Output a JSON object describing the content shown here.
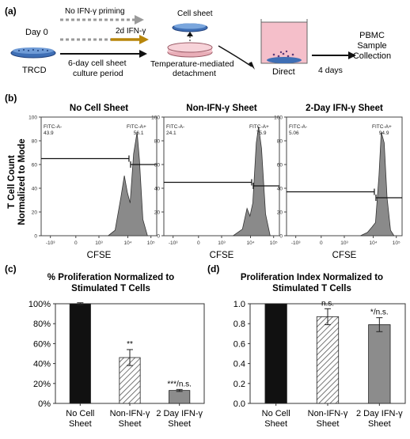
{
  "panel_a": {
    "label": "(a)",
    "day0": "Day 0",
    "trcd": "TRCD",
    "no_priming": "No IFN-γ priming",
    "two_day": "2d IFN-γ",
    "culture_line1": "6-day cell sheet",
    "culture_line2": "culture period",
    "cell_sheet": "Cell sheet",
    "detach_line1": "Temperature-mediated",
    "detach_line2": "detachment",
    "direct": "Direct",
    "four_days": "4 days",
    "pbmc_line1": "PBMC",
    "pbmc_line2": "Sample",
    "pbmc_line3": "Collection",
    "colors": {
      "gray_arrow": "#9a9a9a",
      "gold_arrow": "#b8860b",
      "dish": "#3f6fb5",
      "well": "#f2a9b8"
    }
  },
  "panel_b": {
    "label": "(b)",
    "ylabel_line1": "T Cell Count",
    "ylabel_line2": "Normalized to Mode",
    "xlabel": "CFSE",
    "yticks": [
      "100",
      "80",
      "60",
      "40",
      "20",
      "0"
    ],
    "xticks": [
      "-10³",
      "0",
      "10³",
      "10⁴",
      "10⁵"
    ],
    "plots": [
      {
        "title": "No Cell Sheet",
        "neg_label": "FITC-A-",
        "neg_value": "43.9",
        "pos_label": "FITC-A+",
        "pos_value": "56.1",
        "gate_neg_level": 65,
        "gate_pos_level": 60
      },
      {
        "title": "Non-IFN-γ Sheet",
        "neg_label": "FITC-A-",
        "neg_value": "24.1",
        "pos_label": "FITC-A+",
        "pos_value": "75.9",
        "gate_neg_level": 45,
        "gate_pos_level": 42
      },
      {
        "title": "2-Day IFN-γ Sheet",
        "neg_label": "FITC-A-",
        "neg_value": "5.06",
        "pos_label": "FITC-A+",
        "pos_value": "94.9",
        "gate_neg_level": 37,
        "gate_pos_level": 32
      }
    ]
  },
  "chart_data": [
    {
      "type": "bar",
      "label": "(c)",
      "title_line1": "% Proliferation Normalized to",
      "title_line2": "Stimulated T Cells",
      "categories_line1": [
        "No Cell",
        "Non-IFN-γ",
        "2 Day IFN-γ"
      ],
      "categories_line2": [
        "Sheet",
        "Sheet",
        "Sheet"
      ],
      "values": [
        100,
        46,
        13
      ],
      "errors": [
        1,
        8,
        1
      ],
      "annotations": [
        "",
        "**",
        "***/n.s."
      ],
      "yticks": [
        "0%",
        "20%",
        "40%",
        "60%",
        "80%",
        "100%"
      ],
      "ylim": [
        0,
        100
      ],
      "bar_styles": [
        "solid-black",
        "hatched",
        "solid-gray"
      ]
    },
    {
      "type": "bar",
      "label": "(d)",
      "title_line1": "Proliferation Index Normalized to",
      "title_line2": "Stimulated T Cells",
      "categories_line1": [
        "No Cell",
        "Non-IFN-γ",
        "2 Day IFN-γ"
      ],
      "categories_line2": [
        "Sheet",
        "Sheet",
        "Sheet"
      ],
      "values": [
        1.0,
        0.87,
        0.79
      ],
      "errors": [
        0,
        0.08,
        0.07
      ],
      "annotations": [
        "",
        "n.s.",
        "*/n.s."
      ],
      "yticks": [
        "0.0",
        "0.2",
        "0.4",
        "0.6",
        "0.8",
        "1.0"
      ],
      "ylim": [
        0,
        1.0
      ],
      "bar_styles": [
        "solid-black",
        "hatched",
        "solid-gray"
      ]
    }
  ]
}
